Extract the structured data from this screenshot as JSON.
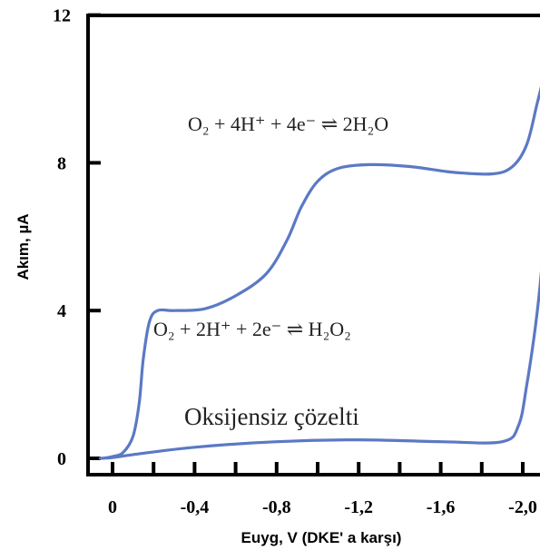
{
  "chart_data": {
    "type": "line",
    "xlabel": "Euyg, V (DKE' a karşı)",
    "ylabel": "Akım, µA",
    "xlim": [
      0.1,
      -2.25
    ],
    "ylim": [
      0,
      12
    ],
    "x_ticks": [
      0,
      -0.4,
      -0.8,
      -1.2,
      -1.6,
      -2.0
    ],
    "x_tick_labels": [
      "0",
      "-0,4",
      "-0,8",
      "-1,2",
      "-1,6",
      "-2,0"
    ],
    "y_ticks": [
      0,
      4,
      8,
      12
    ],
    "y_tick_labels": [
      "0",
      "4",
      "8",
      "12"
    ],
    "line_color": "#5b79c4",
    "series": [
      {
        "values": [
          [
            0.05,
            0.0
          ],
          [
            0.0,
            0.05
          ],
          [
            -0.05,
            0.15
          ],
          [
            -0.1,
            0.6
          ],
          [
            -0.13,
            1.5
          ],
          [
            -0.15,
            2.7
          ],
          [
            -0.18,
            3.7
          ],
          [
            -0.22,
            4.0
          ],
          [
            -0.3,
            4.0
          ],
          [
            -0.45,
            4.05
          ],
          [
            -0.6,
            4.4
          ],
          [
            -0.75,
            5.0
          ],
          [
            -0.85,
            5.9
          ],
          [
            -0.92,
            6.8
          ],
          [
            -1.0,
            7.5
          ],
          [
            -1.1,
            7.85
          ],
          [
            -1.25,
            7.95
          ],
          [
            -1.45,
            7.9
          ],
          [
            -1.65,
            7.75
          ],
          [
            -1.85,
            7.7
          ],
          [
            -1.95,
            7.9
          ],
          [
            -2.02,
            8.5
          ],
          [
            -2.07,
            9.6
          ],
          [
            -2.12,
            10.7
          ],
          [
            -2.14,
            11.0
          ]
        ]
      },
      {
        "values": [
          [
            -2.17,
            10.8
          ],
          [
            -2.15,
            9.5
          ],
          [
            -2.13,
            8.0
          ],
          [
            -2.11,
            6.5
          ],
          [
            -2.09,
            5.0
          ],
          [
            -2.06,
            3.5
          ],
          [
            -2.02,
            2.0
          ],
          [
            -1.98,
            0.9
          ],
          [
            -1.9,
            0.45
          ],
          [
            -1.6,
            0.45
          ],
          [
            -1.2,
            0.5
          ],
          [
            -0.8,
            0.45
          ],
          [
            -0.4,
            0.3
          ],
          [
            -0.1,
            0.1
          ],
          [
            0.0,
            0.02
          ],
          [
            0.06,
            0.0
          ]
        ]
      }
    ],
    "annotations": [
      {
        "text": "O₂ + 4H⁺ + 4e⁻ ⇌ 2H₂O"
      },
      {
        "text": "O₂ + 2H⁺ + 2e⁻ ⇌ H₂O₂"
      },
      {
        "text": "Oksijensiz çözelti"
      }
    ]
  }
}
